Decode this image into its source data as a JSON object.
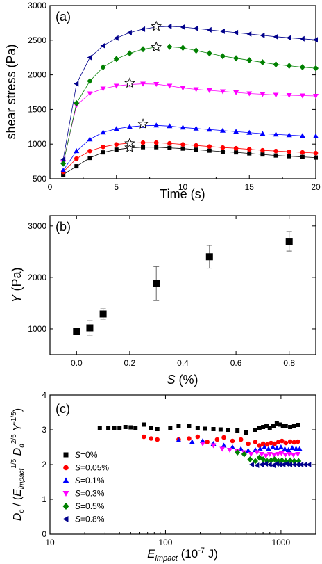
{
  "chart_data": [
    {
      "panel": "(a)",
      "type": "line",
      "xlabel": "Time (s)",
      "ylabel": "shear stress (Pa)",
      "xlim": [
        0,
        20
      ],
      "ylim": [
        500,
        3000
      ],
      "xticks": [
        0,
        5,
        10,
        15,
        20
      ],
      "yticks": [
        500,
        1000,
        1500,
        2000,
        2500,
        3000
      ],
      "x": [
        1,
        2,
        3,
        4,
        5,
        6,
        7,
        8,
        9,
        10,
        11,
        12,
        13,
        14,
        15,
        16,
        17,
        18,
        19,
        20
      ],
      "series": [
        {
          "marker": "square",
          "color": "#000000",
          "values": [
            560,
            680,
            800,
            880,
            920,
            945,
            955,
            955,
            945,
            935,
            920,
            905,
            890,
            880,
            865,
            850,
            835,
            825,
            815,
            805
          ],
          "peak": {
            "x": 6,
            "y": 950
          }
        },
        {
          "marker": "circle",
          "color": "#ff0000",
          "values": [
            600,
            790,
            900,
            960,
            995,
            1015,
            1020,
            1020,
            1010,
            995,
            980,
            965,
            950,
            940,
            925,
            910,
            900,
            890,
            880,
            870
          ],
          "peak": {
            "x": 6,
            "y": 1010
          }
        },
        {
          "marker": "triangle-up",
          "color": "#0000ff",
          "values": [
            620,
            900,
            1070,
            1170,
            1220,
            1250,
            1265,
            1270,
            1260,
            1240,
            1225,
            1210,
            1195,
            1180,
            1165,
            1150,
            1140,
            1130,
            1120,
            1115
          ],
          "peak": {
            "x": 7,
            "y": 1290
          }
        },
        {
          "marker": "triangle-down",
          "color": "#ff00ff",
          "values": [
            740,
            1560,
            1730,
            1800,
            1840,
            1860,
            1870,
            1865,
            1840,
            1810,
            1790,
            1775,
            1760,
            1745,
            1730,
            1720,
            1710,
            1705,
            1700,
            1695
          ],
          "peak": {
            "x": 6,
            "y": 1880
          }
        },
        {
          "marker": "diamond",
          "color": "#008000",
          "values": [
            720,
            1590,
            1910,
            2110,
            2230,
            2310,
            2370,
            2400,
            2405,
            2390,
            2350,
            2310,
            2270,
            2240,
            2210,
            2180,
            2150,
            2130,
            2110,
            2095
          ],
          "peak": {
            "x": 8,
            "y": 2400
          }
        },
        {
          "marker": "triangle-left",
          "color": "#00008b",
          "values": [
            780,
            1870,
            2250,
            2420,
            2530,
            2610,
            2660,
            2690,
            2700,
            2690,
            2670,
            2650,
            2630,
            2610,
            2590,
            2570,
            2550,
            2535,
            2520,
            2505
          ],
          "peak": {
            "x": 8,
            "y": 2700
          }
        }
      ]
    },
    {
      "panel": "(b)",
      "type": "scatter",
      "xlabel_italic": "S",
      "xlabel_rest": " (%)",
      "ylabel_italic": "Y",
      "ylabel_rest": " (Pa)",
      "xlim": [
        -0.1,
        0.9
      ],
      "ylim": [
        500,
        3200
      ],
      "xticks": [
        0.0,
        0.2,
        0.4,
        0.6,
        0.8
      ],
      "xtick_labels": [
        "0.0",
        "0.2",
        "0.4",
        "0.6",
        "0.8"
      ],
      "yticks": [
        1000,
        2000,
        3000
      ],
      "points": [
        {
          "x": 0.0,
          "y": 950,
          "err": 30
        },
        {
          "x": 0.05,
          "y": 1020,
          "err": 140
        },
        {
          "x": 0.1,
          "y": 1290,
          "err": 100
        },
        {
          "x": 0.3,
          "y": 1880,
          "err": 330
        },
        {
          "x": 0.5,
          "y": 2400,
          "err": 220
        },
        {
          "x": 0.8,
          "y": 2700,
          "err": 190
        }
      ]
    },
    {
      "panel": "(c)",
      "type": "scatter",
      "x_scale": "log",
      "xlim": [
        10,
        2000
      ],
      "ylim": [
        0,
        4
      ],
      "xticks": [
        10,
        100,
        1000
      ],
      "yticks": [
        0,
        1,
        2,
        3,
        4
      ],
      "xlabel": {
        "E": "E",
        "sub": "impact",
        "rest": " (10",
        "exp": "-7",
        "unit": " J)"
      },
      "ylabel": {
        "Dc": "D",
        "c_sub": "c",
        "slash": " / (",
        "E": "E",
        "e_sub": "impact",
        "p15": "1/5",
        "D": " D",
        "d_sub": "d",
        "p25": "2/5",
        "Y": " Y",
        "pm15": "-1/5",
        "close": ")"
      },
      "legend_position": "left",
      "series": [
        {
          "name_italic": "S",
          "name_rest": "=0%",
          "marker": "square",
          "color": "#000000",
          "points": [
            [
              27,
              3.05
            ],
            [
              32,
              3.04
            ],
            [
              36,
              3.06
            ],
            [
              40,
              3.05
            ],
            [
              45,
              3.08
            ],
            [
              50,
              3.07
            ],
            [
              55,
              3.05
            ],
            [
              65,
              3.15
            ],
            [
              75,
              3.05
            ],
            [
              85,
              3.02
            ],
            [
              110,
              3.05
            ],
            [
              130,
              3.1
            ],
            [
              160,
              3.12
            ],
            [
              190,
              3.05
            ],
            [
              220,
              3.03
            ],
            [
              260,
              3.02
            ],
            [
              300,
              3.01
            ],
            [
              350,
              3.0
            ],
            [
              420,
              2.98
            ],
            [
              500,
              2.92
            ],
            [
              600,
              3.0
            ],
            [
              650,
              3.05
            ],
            [
              700,
              3.08
            ],
            [
              750,
              3.1
            ],
            [
              800,
              3.05
            ],
            [
              860,
              3.12
            ],
            [
              920,
              3.18
            ],
            [
              980,
              3.15
            ],
            [
              1040,
              3.12
            ],
            [
              1100,
              3.1
            ],
            [
              1200,
              3.08
            ],
            [
              1300,
              3.12
            ],
            [
              1400,
              3.14
            ]
          ]
        },
        {
          "name_italic": "S",
          "name_rest": "=0.05%",
          "marker": "circle",
          "color": "#ff0000",
          "points": [
            [
              65,
              2.8
            ],
            [
              75,
              2.75
            ],
            [
              85,
              2.72
            ],
            [
              130,
              2.72
            ],
            [
              160,
              2.75
            ],
            [
              190,
              2.8
            ],
            [
              230,
              2.65
            ],
            [
              280,
              2.72
            ],
            [
              320,
              2.78
            ],
            [
              380,
              2.68
            ],
            [
              450,
              2.72
            ],
            [
              520,
              2.6
            ],
            [
              600,
              2.65
            ],
            [
              650,
              2.55
            ],
            [
              700,
              2.6
            ],
            [
              760,
              2.58
            ],
            [
              820,
              2.62
            ],
            [
              880,
              2.6
            ],
            [
              950,
              2.65
            ],
            [
              1020,
              2.68
            ],
            [
              1100,
              2.62
            ],
            [
              1200,
              2.66
            ],
            [
              1300,
              2.64
            ],
            [
              1400,
              2.66
            ]
          ]
        },
        {
          "name_italic": "S",
          "name_rest": "=0.1%",
          "marker": "triangle-up",
          "color": "#0000ff",
          "points": [
            [
              130,
              2.7
            ],
            [
              170,
              2.65
            ],
            [
              210,
              2.68
            ],
            [
              260,
              2.6
            ],
            [
              320,
              2.55
            ],
            [
              380,
              2.5
            ],
            [
              450,
              2.45
            ],
            [
              520,
              2.4
            ],
            [
              600,
              2.42
            ],
            [
              660,
              2.45
            ],
            [
              720,
              2.5
            ],
            [
              780,
              2.45
            ],
            [
              850,
              2.5
            ],
            [
              920,
              2.48
            ],
            [
              1000,
              2.5
            ],
            [
              1080,
              2.45
            ],
            [
              1160,
              2.42
            ],
            [
              1250,
              2.48
            ],
            [
              1350,
              2.46
            ],
            [
              1450,
              2.45
            ]
          ]
        },
        {
          "name_italic": "S",
          "name_rest": "=0.3%",
          "marker": "triangle-down",
          "color": "#ff00ff",
          "points": [
            [
              210,
              2.6
            ],
            [
              260,
              2.55
            ],
            [
              310,
              2.45
            ],
            [
              360,
              2.42
            ],
            [
              420,
              2.38
            ],
            [
              480,
              2.35
            ],
            [
              550,
              2.3
            ],
            [
              620,
              2.35
            ],
            [
              680,
              2.3
            ],
            [
              740,
              2.25
            ],
            [
              800,
              2.3
            ],
            [
              870,
              2.28
            ],
            [
              940,
              2.3
            ],
            [
              1010,
              2.32
            ],
            [
              1090,
              2.28
            ],
            [
              1180,
              2.3
            ],
            [
              1280,
              2.28
            ],
            [
              1400,
              2.3
            ]
          ]
        },
        {
          "name_italic": "S",
          "name_rest": "=0.5%",
          "marker": "diamond",
          "color": "#008000",
          "points": [
            [
              420,
              2.35
            ],
            [
              480,
              2.3
            ],
            [
              540,
              2.15
            ],
            [
              600,
              2.1
            ],
            [
              650,
              2.2
            ],
            [
              700,
              2.15
            ],
            [
              760,
              2.1
            ],
            [
              820,
              2.12
            ],
            [
              880,
              2.15
            ],
            [
              950,
              2.1
            ],
            [
              1020,
              2.12
            ],
            [
              1100,
              2.1
            ],
            [
              1200,
              2.12
            ],
            [
              1300,
              2.1
            ],
            [
              1420,
              2.1
            ]
          ]
        },
        {
          "name_italic": "S",
          "name_rest": "=0.8%",
          "marker": "triangle-left",
          "color": "#00008b",
          "points": [
            [
              560,
              2.0
            ],
            [
              620,
              1.98
            ],
            [
              680,
              2.0
            ],
            [
              740,
              2.02
            ],
            [
              800,
              2.0
            ],
            [
              860,
              1.98
            ],
            [
              920,
              2.02
            ],
            [
              980,
              2.0
            ],
            [
              1050,
              2.0
            ],
            [
              1120,
              2.02
            ],
            [
              1200,
              2.0
            ],
            [
              1300,
              2.0
            ],
            [
              1400,
              2.0
            ],
            [
              1500,
              2.0
            ],
            [
              1620,
              2.0
            ],
            [
              1750,
              2.0
            ]
          ]
        }
      ]
    }
  ]
}
